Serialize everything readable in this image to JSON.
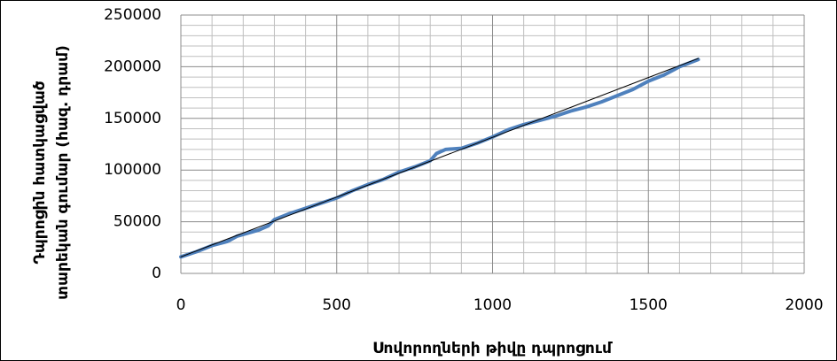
{
  "chart_data": {
    "type": "line",
    "xlabel": "Սովորողների թիվը դպրոցում",
    "ylabel_lines": [
      "Դպրոցին հատկացված",
      "տարեկան գումար (հազ. դրամ)"
    ],
    "xlim": [
      0,
      2000
    ],
    "xticks": [
      0,
      500,
      1000,
      1500,
      2000
    ],
    "ylim": [
      0,
      250000
    ],
    "yticks": [
      0,
      50000,
      100000,
      150000,
      200000,
      250000
    ],
    "x_minor_ticks": [
      100,
      200,
      300,
      400,
      600,
      700,
      800,
      900,
      1100,
      1200,
      1300,
      1400,
      1600,
      1700,
      1800,
      1900
    ],
    "y_minor_ticks": [
      10000,
      20000,
      30000,
      40000,
      60000,
      70000,
      80000,
      90000,
      110000,
      120000,
      130000,
      140000,
      160000,
      170000,
      180000,
      190000,
      210000,
      220000,
      230000,
      240000
    ],
    "grid": true,
    "series": [
      {
        "color": "#4f81bd",
        "width": 4,
        "x": [
          0,
          50,
          100,
          150,
          180,
          250,
          280,
          300,
          350,
          400,
          450,
          500,
          550,
          600,
          650,
          700,
          750,
          800,
          820,
          850,
          900,
          950,
          1000,
          1050,
          1100,
          1150,
          1200,
          1250,
          1300,
          1350,
          1400,
          1450,
          1500,
          1550,
          1600,
          1660
        ],
        "values": [
          16000,
          21000,
          27000,
          31000,
          36000,
          42000,
          46000,
          52000,
          58000,
          63000,
          68000,
          73000,
          80000,
          86000,
          91000,
          98000,
          103000,
          109000,
          116000,
          120000,
          121000,
          126000,
          132000,
          139000,
          144000,
          148000,
          152000,
          157000,
          161000,
          166000,
          172000,
          178000,
          186000,
          192000,
          200000,
          207000
        ]
      },
      {
        "color": "#000000",
        "width": 1,
        "x": [
          0,
          1660
        ],
        "values": [
          16000,
          208000
        ]
      }
    ]
  }
}
